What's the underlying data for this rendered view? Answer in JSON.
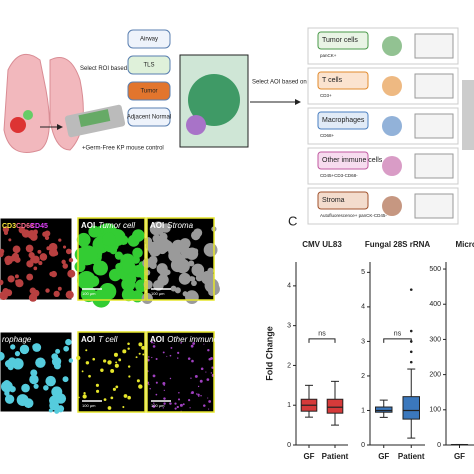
{
  "figure": {
    "roi_step": "Select ROI based on morphology",
    "roi_types": [
      "Airway",
      "TLS",
      "Tumor",
      "Adjacent Normal"
    ],
    "control": "+Germ-Free KP mouse control",
    "aoi_step": "Select AOI based on cell surface marker",
    "aoi_types": [
      {
        "name": "Tumor cells",
        "marker": "panCK+"
      },
      {
        "name": "T cells",
        "marker": "CD3+"
      },
      {
        "name": "Macrophages",
        "marker": "CD68+"
      },
      {
        "name": "Other immune cells",
        "marker": "CD45+CD3-CD68-"
      },
      {
        "name": "Stroma",
        "marker": "Autofluorescence+ panCK-CD45-"
      }
    ],
    "channels": [
      "CD3",
      "CD68",
      "CD45"
    ],
    "images": [
      {
        "prefix": "AOI",
        "name": "Tumor cell"
      },
      {
        "prefix": "AOI",
        "name": "Stroma"
      },
      {
        "name": "rophage"
      },
      {
        "prefix": "AOI",
        "name": "T cell"
      },
      {
        "prefix": "AOI",
        "name": "Other immune"
      }
    ],
    "scale_bar": "100 µm",
    "panel_c": "C"
  },
  "chart_data": [
    {
      "type": "box",
      "title": "CMV UL83",
      "ylabel": "Fold Change",
      "categories": [
        "GF",
        "Patient"
      ],
      "color": "#d63a3a",
      "boxes": [
        {
          "min": 0.7,
          "q1": 0.85,
          "median": 1.0,
          "q3": 1.15,
          "max": 1.5
        },
        {
          "min": 0.5,
          "q1": 0.8,
          "median": 0.95,
          "q3": 1.15,
          "max": 1.6
        }
      ],
      "annotation": "ns",
      "ylim": [
        0,
        4.6
      ],
      "yticks": [
        0,
        1,
        2,
        3,
        4
      ]
    },
    {
      "type": "box",
      "title": "Fungal 28S rRNA",
      "categories": [
        "GF",
        "Patient"
      ],
      "color": "#3b78bd",
      "boxes": [
        {
          "min": 0.8,
          "q1": 0.95,
          "median": 1.0,
          "q3": 1.1,
          "max": 1.3
        },
        {
          "min": 0.2,
          "q1": 0.75,
          "median": 1.0,
          "q3": 1.4,
          "max": 2.2
        }
      ],
      "outliers": [
        [],
        [
          2.4,
          2.7,
          3.0,
          3.3,
          4.5
        ]
      ],
      "annotation": "ns",
      "ylim": [
        0,
        5.3
      ],
      "yticks": [
        0,
        1,
        2,
        3,
        4,
        5
      ]
    },
    {
      "type": "box",
      "title": "Microbial",
      "categories": [
        "GF"
      ],
      "color": "#3b78bd",
      "boxes": [
        {
          "min": 0.5,
          "q1": 0.8,
          "median": 1.0,
          "q3": 1.2,
          "max": 1.5
        }
      ],
      "ylim": [
        0,
        520
      ],
      "yticks": [
        0,
        100,
        200,
        300,
        400,
        500
      ]
    }
  ]
}
